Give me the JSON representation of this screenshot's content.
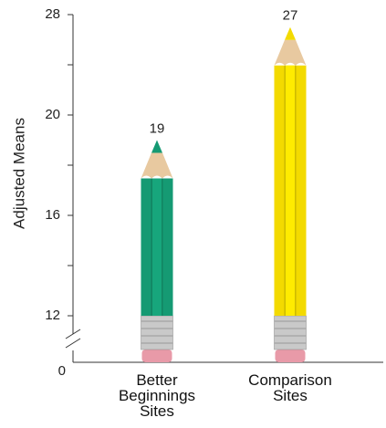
{
  "chart_data": {
    "type": "pictograph-bar",
    "y_label": "Adjusted Means",
    "categories": [
      "Better Beginnings Sites",
      "Comparison Sites"
    ],
    "values": [
      19,
      27
    ],
    "colors": [
      "#159a73",
      "#f3da00"
    ],
    "ylim": [
      0,
      28
    ],
    "yticks": [
      0,
      12,
      16,
      20,
      28
    ],
    "axis_break": true
  }
}
